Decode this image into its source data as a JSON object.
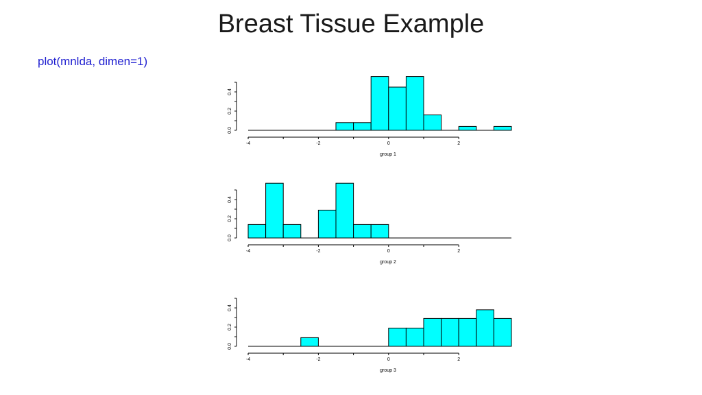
{
  "slide": {
    "title": "Breast Tissue Example",
    "code": "plot(mnlda, dimen=1)"
  },
  "colors": {
    "bar_fill": "#00ffff",
    "bar_stroke": "#000000"
  },
  "chart_data": [
    {
      "type": "bar",
      "xlabel": "group 1",
      "xlim": [
        -4,
        3.5
      ],
      "ylim": [
        0,
        0.5
      ],
      "x_ticks": [
        "-4",
        "-2",
        "0",
        "2"
      ],
      "y_ticks": [
        "0.0",
        "0.2",
        "0.4"
      ],
      "bin_width": 0.5,
      "bars": [
        {
          "x": -1.5,
          "value": 0.08
        },
        {
          "x": -1.0,
          "value": 0.08
        },
        {
          "x": -0.5,
          "value": 0.56
        },
        {
          "x": 0.0,
          "value": 0.45
        },
        {
          "x": 0.5,
          "value": 0.56
        },
        {
          "x": 1.0,
          "value": 0.16
        },
        {
          "x": 2.0,
          "value": 0.04
        },
        {
          "x": 3.0,
          "value": 0.04
        }
      ]
    },
    {
      "type": "bar",
      "xlabel": "group 2",
      "xlim": [
        -4,
        3.5
      ],
      "ylim": [
        0,
        0.5
      ],
      "x_ticks": [
        "-4",
        "-2",
        "0",
        "2"
      ],
      "y_ticks": [
        "0.0",
        "0.2",
        "0.4"
      ],
      "bin_width": 0.5,
      "bars": [
        {
          "x": -4.0,
          "value": 0.14
        },
        {
          "x": -3.5,
          "value": 0.57
        },
        {
          "x": -3.0,
          "value": 0.14
        },
        {
          "x": -2.0,
          "value": 0.29
        },
        {
          "x": -1.5,
          "value": 0.57
        },
        {
          "x": -1.0,
          "value": 0.14
        },
        {
          "x": -0.5,
          "value": 0.14
        }
      ]
    },
    {
      "type": "bar",
      "xlabel": "group 3",
      "xlim": [
        -4,
        3.5
      ],
      "ylim": [
        0,
        0.5
      ],
      "x_ticks": [
        "-4",
        "-2",
        "0",
        "2"
      ],
      "y_ticks": [
        "0.0",
        "0.2",
        "0.4"
      ],
      "bin_width": 0.5,
      "bars": [
        {
          "x": -2.5,
          "value": 0.09
        },
        {
          "x": 0.0,
          "value": 0.19
        },
        {
          "x": 0.5,
          "value": 0.19
        },
        {
          "x": 1.0,
          "value": 0.29
        },
        {
          "x": 1.5,
          "value": 0.29
        },
        {
          "x": 2.0,
          "value": 0.29
        },
        {
          "x": 2.5,
          "value": 0.38
        },
        {
          "x": 3.0,
          "value": 0.29
        }
      ]
    }
  ]
}
